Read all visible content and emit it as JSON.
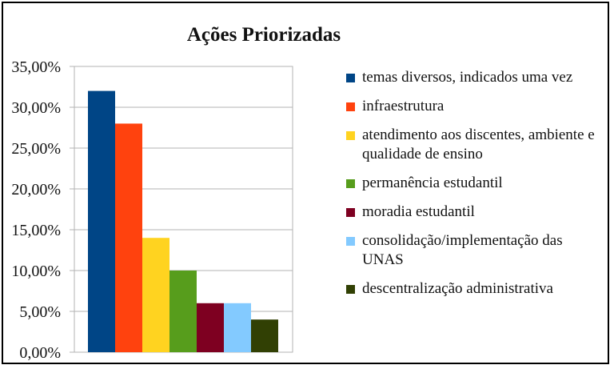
{
  "chart_data": {
    "type": "bar",
    "title": "Ações Priorizadas",
    "xlabel": "",
    "ylabel": "",
    "ylim": [
      0,
      35
    ],
    "y_ticks": [
      "0,00%",
      "5,00%",
      "10,00%",
      "15,00%",
      "20,00%",
      "25,00%",
      "30,00%",
      "35,00%"
    ],
    "grid": true,
    "legend_placement": "right",
    "series": [
      {
        "name": "temas diversos, indicados uma vez",
        "value": 32,
        "color": "#004586"
      },
      {
        "name": "infraestrutura",
        "value": 28,
        "color": "#ff420e"
      },
      {
        "name": "atendimento aos discentes, ambiente e qualidade de ensino",
        "value": 14,
        "color": "#ffd320"
      },
      {
        "name": "permanência estudantil",
        "value": 10,
        "color": "#579d1c"
      },
      {
        "name": "moradia estudantil",
        "value": 6,
        "color": "#7e0021"
      },
      {
        "name": "consolidação/implementação das UNAS",
        "value": 6,
        "color": "#83caff"
      },
      {
        "name": "descentralização administrativa",
        "value": 4,
        "color": "#314004"
      }
    ]
  }
}
